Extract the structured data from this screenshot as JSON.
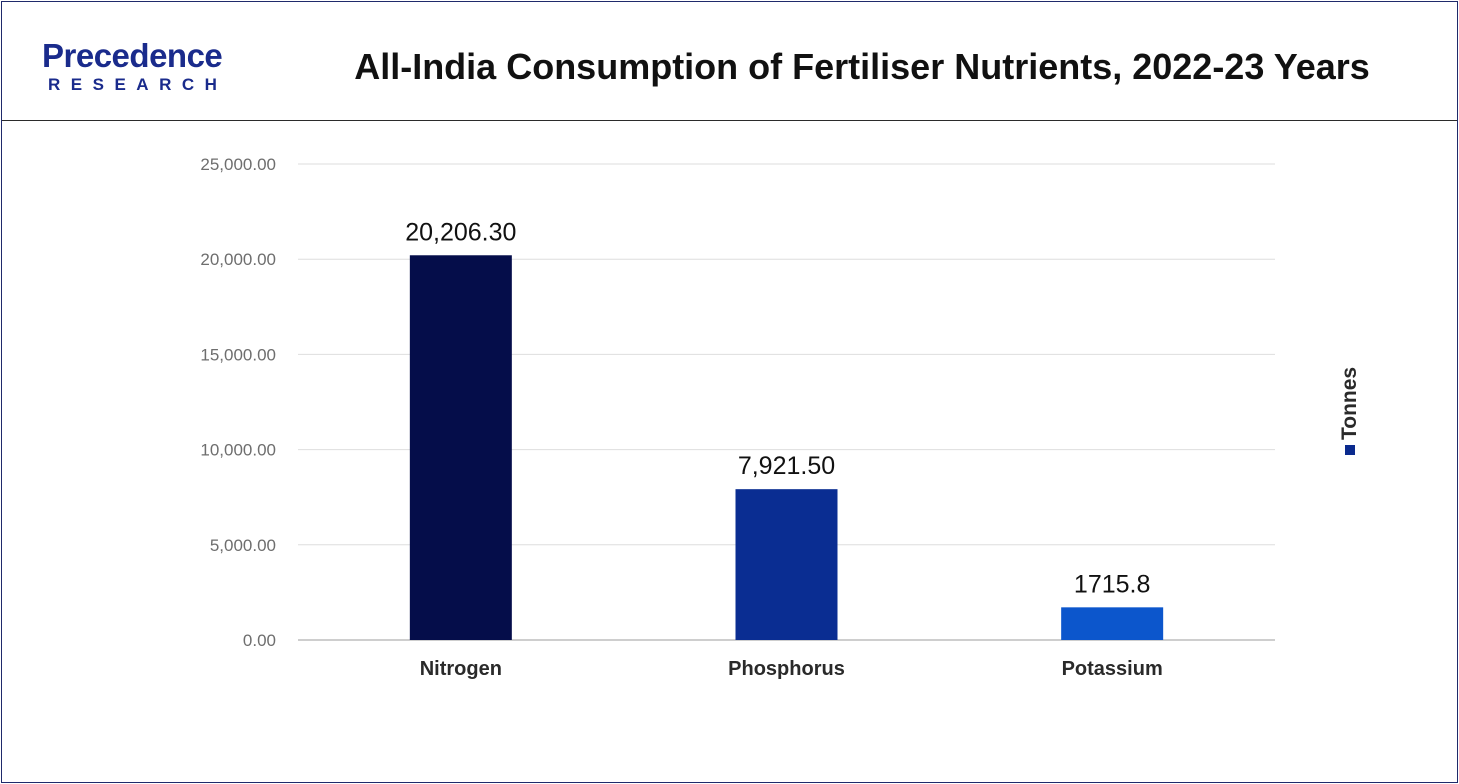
{
  "header": {
    "logo_top": "Precedence",
    "logo_bottom": "RESEARCH",
    "title": "All-India Consumption of Fertiliser Nutrients, 2022-23 Years"
  },
  "chart_data": {
    "type": "bar",
    "title": "All-India Consumption of Fertiliser Nutrients, 2022-23 Years",
    "categories": [
      "Nitrogen",
      "Phosphorus",
      "Potassium"
    ],
    "series": [
      {
        "name": "Tonnes",
        "values": [
          20206.3,
          7921.5,
          1715.8
        ]
      }
    ],
    "data_labels": [
      "20,206.30",
      "7,921.50",
      "1715.8"
    ],
    "y_ticks": [
      "0.00",
      "5,000.00",
      "10,000.00",
      "15,000.00",
      "20,000.00",
      "25,000.00"
    ],
    "ylim": [
      0,
      25000
    ],
    "xlabel": "",
    "ylabel": "",
    "grid": true,
    "legend_position": "right",
    "bar_colors": [
      "#050d4a",
      "#0a2d92",
      "#0c56cc"
    ],
    "legend_color": "#0a2a8e"
  }
}
